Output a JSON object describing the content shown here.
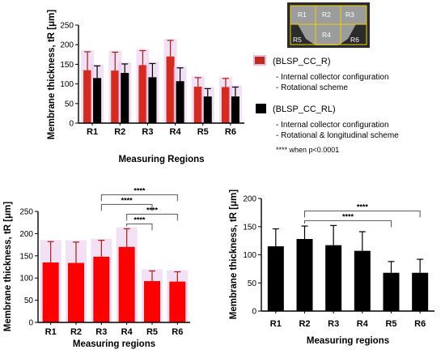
{
  "chart_data": [
    {
      "type": "bar",
      "categories": [
        "R1",
        "R2",
        "R3",
        "R4",
        "R5",
        "R6"
      ],
      "xlabel": "Measuring Regions",
      "ylabel": "Membrane thickness, tR [μm]",
      "ylim": [
        0,
        250
      ],
      "yticks": [
        "0",
        "50",
        "100",
        "150",
        "200",
        "250"
      ],
      "series": [
        {
          "name": "(BLSP_CC_R)",
          "color": "#d62a1e",
          "values": [
            135,
            134,
            148,
            170,
            93,
            92
          ],
          "errors": [
            47,
            47,
            37,
            41,
            23,
            22
          ]
        },
        {
          "name": "(BLSP_CC_RL)",
          "color": "#000000",
          "values": [
            115,
            128,
            117,
            107,
            68,
            68
          ],
          "errors": [
            31,
            23,
            35,
            34,
            20,
            24
          ]
        }
      ]
    },
    {
      "type": "bar",
      "categories": [
        "R1",
        "R2",
        "R3",
        "R4",
        "R5",
        "R6"
      ],
      "xlabel": "Measuring regions",
      "ylabel": "Membrane thickness, tR [μm]",
      "ylim": [
        0,
        250
      ],
      "yticks": [
        "0",
        "50",
        "100",
        "150",
        "200",
        "250"
      ],
      "series": [
        {
          "color": "#ff0000",
          "values": [
            135,
            134,
            148,
            170,
            93,
            92
          ],
          "errors": [
            47,
            47,
            37,
            41,
            23,
            22
          ]
        }
      ],
      "significance": [
        {
          "from": "R3",
          "to": "R6",
          "label": "****"
        },
        {
          "from": "R3",
          "to": "R5",
          "label": "****"
        },
        {
          "from": "R4",
          "to": "R6",
          "label": "****"
        },
        {
          "from": "R4",
          "to": "R5",
          "label": "****"
        }
      ]
    },
    {
      "type": "bar",
      "categories": [
        "R1",
        "R2",
        "R3",
        "R4",
        "R5",
        "R6"
      ],
      "xlabel": "Measuring regions",
      "ylabel": "Membrane thickness, tR [μm]",
      "ylim": [
        0,
        200
      ],
      "yticks": [
        "0",
        "50",
        "100",
        "150",
        "200"
      ],
      "series": [
        {
          "color": "#000000",
          "values": [
            115,
            128,
            117,
            107,
            68,
            68
          ],
          "errors": [
            31,
            23,
            35,
            34,
            20,
            24
          ]
        }
      ],
      "significance": [
        {
          "from": "R2",
          "to": "R6",
          "label": "****"
        },
        {
          "from": "R2",
          "to": "R5",
          "label": "****"
        }
      ]
    }
  ],
  "legend": {
    "items": [
      {
        "label": "(BLSP_CC_R)",
        "lines": [
          "- Internal collector configuration",
          "- Rotational scheme"
        ],
        "color": "#c0281c"
      },
      {
        "label": "(BLSP_CC_RL)",
        "lines": [
          "- Internal collector configuration",
          "- Rotational & longitudinal scheme"
        ],
        "color": "#000000"
      }
    ],
    "note": "**** when p<0.0001"
  },
  "inset": {
    "regions": [
      "R1",
      "R2",
      "R3",
      "R4",
      "R5",
      "R6"
    ]
  }
}
